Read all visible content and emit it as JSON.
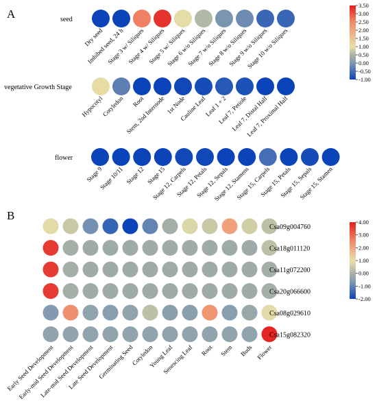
{
  "chart_data": [
    {
      "type": "heatmap",
      "panel": "A",
      "scale": {
        "min": -1.0,
        "max": 3.5,
        "ticks": [
          "3.50",
          "3.00",
          "2.50",
          "2.00",
          "1.50",
          "1.00",
          "0.50",
          "0.00",
          "-0.50",
          "-1.00"
        ],
        "tick_values": [
          3.5,
          3.0,
          2.5,
          2.0,
          1.5,
          1.0,
          0.5,
          0.0,
          -0.5,
          -1.0
        ],
        "colors": [
          "#0a44b8",
          "#7f98b0",
          "#a9b2a6",
          "#e8e0a8",
          "#f08a6a",
          "#e21e1e"
        ],
        "color_stops": [
          0,
          0.22,
          0.33,
          0.44,
          0.78,
          1
        ]
      },
      "groups": [
        {
          "name": "seed",
          "labels": [
            "Dry seed",
            "Imbibed seed, 24 h",
            "Stage 3 w/ Siliques",
            "Stage 4 w/ Siliques",
            "Stage 5 w/ Siliques",
            "Stage 6 w/o Siliques",
            "Stage 7 w/o Siliques",
            "Stage 8 w/o Siliques",
            "Stage 9 w/o Siliques",
            "Stage 10 w/o Siliques"
          ],
          "values": [
            -1.0,
            -1.0,
            2.6,
            3.3,
            0.95,
            0.55,
            -0.05,
            -0.15,
            -0.6,
            -0.6
          ]
        },
        {
          "name": "vegetative Growth Stage",
          "labels": [
            "Hypocotyl",
            "Cotyledon",
            "Root",
            "Stem, 2nd Internode",
            "1st Node",
            "Cauline Leaf",
            "Leaf 1 + 2",
            "Leaf 7, Petiole",
            "Leaf 7, Distal Half",
            "Leaf 7, Proximal Half"
          ],
          "values": [
            1.05,
            -0.3,
            -1.0,
            -1.0,
            -0.95,
            -0.9,
            -0.75,
            -0.85,
            -1.0,
            -1.0
          ]
        },
        {
          "name": "flower",
          "labels": [
            "Stage 9",
            "Stage 10/11",
            "Stage 12",
            "Stage 15",
            "Stage 12, Carpels",
            "Stage 12, Petals",
            "Stage 12, Sepals",
            "Stage 12, Stamens",
            "Stage 15, Carpels",
            "Stage 15, Petals",
            "Stage 15, Sepals",
            "Stage 15, Stamen"
          ],
          "values": [
            -1.0,
            -1.0,
            -1.0,
            -1.0,
            -0.95,
            -0.95,
            -1.0,
            -1.0,
            -0.5,
            -1.0,
            -0.9,
            -1.0
          ]
        }
      ]
    },
    {
      "type": "heatmap",
      "panel": "B",
      "scale": {
        "min": -2.0,
        "max": 4.0,
        "ticks": [
          "4.00",
          "3.00",
          "2.00",
          "1.00",
          "0.00",
          "-1.00",
          "-2.00"
        ],
        "tick_values": [
          4.0,
          3.0,
          2.0,
          1.0,
          0.0,
          -1.0,
          -2.0
        ],
        "colors": [
          "#0a44b8",
          "#7f98b0",
          "#a9b2a6",
          "#e8e0a8",
          "#f08a6a",
          "#e21e1e"
        ],
        "color_stops": [
          0,
          0.22,
          0.33,
          0.5,
          0.75,
          1
        ]
      },
      "columns": [
        "Early Seed Development",
        "Early-mid Seed Development",
        "Late-mid Seed Development",
        "Late Seed Development",
        "Germinating Seed",
        "Cotyledon",
        "Young Leaf",
        "Senescing Leaf",
        "Root",
        "Stem",
        "Buds",
        "Flower"
      ],
      "rows": [
        {
          "gene": "Csa09g004760",
          "values": [
            0.9,
            0.5,
            -0.8,
            -1.5,
            -2.0,
            -1.0,
            -0.1,
            0.8,
            0.5,
            2.1,
            0.6,
            0.3
          ]
        },
        {
          "gene": "Csa18g011120",
          "values": [
            3.6,
            -0.1,
            -0.2,
            -0.2,
            -0.2,
            -0.2,
            -0.2,
            -0.2,
            -0.2,
            -0.2,
            -0.2,
            0.3
          ]
        },
        {
          "gene": "Csa11g072200",
          "values": [
            3.6,
            -0.1,
            -0.2,
            -0.2,
            -0.2,
            -0.2,
            -0.2,
            -0.2,
            -0.2,
            -0.2,
            -0.2,
            -0.1
          ]
        },
        {
          "gene": "Csa20g066600",
          "values": [
            3.6,
            -0.1,
            -0.2,
            -0.2,
            -0.2,
            -0.2,
            -0.2,
            -0.2,
            -0.2,
            -0.2,
            -0.2,
            -0.1
          ]
        },
        {
          "gene": "Csa08g029610",
          "values": [
            -0.6,
            2.4,
            -0.4,
            -0.5,
            -0.4,
            0.3,
            -0.5,
            -0.5,
            2.3,
            -0.5,
            -0.3,
            0.9
          ]
        },
        {
          "gene": "Csa15g082320",
          "values": [
            -0.4,
            -0.4,
            -0.4,
            -0.4,
            -0.4,
            -0.4,
            -0.4,
            -0.4,
            -0.4,
            -0.4,
            -0.4,
            3.9
          ]
        }
      ]
    }
  ],
  "panels": {
    "a": "A",
    "b": "B"
  }
}
